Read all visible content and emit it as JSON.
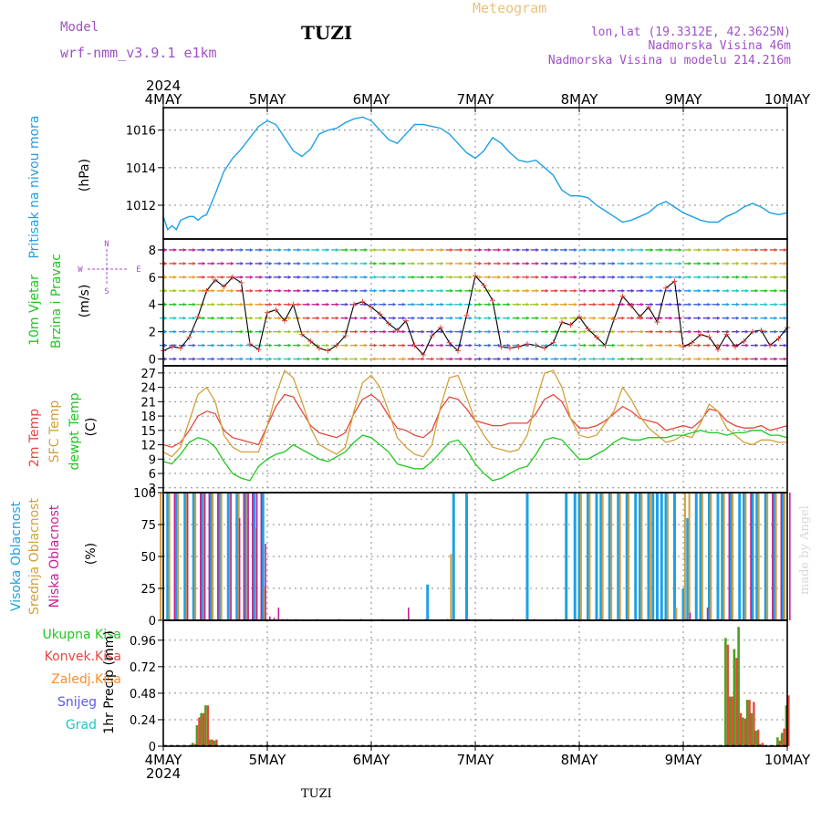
{
  "header": {
    "model_label": "Model",
    "model_name": "wrf-nmm_v3.9.1 e1km",
    "station": "TUZI",
    "meteogram": "Meteogram",
    "coords": "lon,lat (19.3312E, 42.3625N)",
    "elevation": "Nadmorska Visina 46m",
    "model_elevation": "Nadmorska Visina u modelu 214.216m",
    "credit": "made by Angel",
    "footer_station": "TUZI"
  },
  "colors": {
    "frame": "#000000",
    "grid": "#888888",
    "pressure": "#1ea0e6",
    "temp2m": "#e8463c",
    "sfc": "#d2a03c",
    "dewpt": "#1ec81e",
    "high_cloud": "#1ea0e6",
    "mid_cloud": "#d2a03c",
    "low_cloud": "#c81e96",
    "model_text": "#a050c8",
    "meteogram_text": "#e6c37d",
    "total_precip": "#4f9e1e",
    "conv_precip": "#e8463c",
    "frozen_precip": "#ff8c28",
    "snow": "#5a5ae6",
    "graupel": "#1ec8c8"
  },
  "chart_data": [
    {
      "type": "line",
      "panel": "pressure",
      "ylabel": "Pritisak na nivou mora",
      "unit": "(hPa)",
      "x_labels": [
        "4MAY",
        "5MAY",
        "6MAY",
        "7MAY",
        "8MAY",
        "9MAY",
        "10MAY"
      ],
      "year": "2024",
      "xlim": [
        0,
        144
      ],
      "ylim": [
        1010.2,
        1017.2
      ],
      "yticks": [
        "1012",
        "1014",
        "1016"
      ],
      "grid": true,
      "series": [
        {
          "color_key": "pressure",
          "x": [
            0,
            1,
            2,
            3,
            4,
            5,
            6,
            7,
            8,
            9,
            10,
            12,
            14,
            16,
            18,
            20,
            22,
            24,
            26,
            28,
            30,
            32,
            34,
            36,
            38,
            40,
            42,
            44,
            46,
            48,
            50,
            52,
            54,
            56,
            58,
            60,
            62,
            64,
            66,
            68,
            70,
            72,
            74,
            76,
            78,
            80,
            82,
            84,
            86,
            88,
            90,
            92,
            94,
            96,
            98,
            100,
            102,
            104,
            106,
            108,
            110,
            112,
            114,
            116,
            118,
            120,
            122,
            124,
            126,
            128,
            130,
            132,
            134,
            136,
            138,
            140,
            142,
            144
          ],
          "values": [
            1011.4,
            1010.7,
            1010.9,
            1010.7,
            1011.2,
            1011.3,
            1011.4,
            1011.4,
            1011.2,
            1011.4,
            1011.5,
            1012.6,
            1013.8,
            1014.5,
            1015.0,
            1015.6,
            1016.2,
            1016.5,
            1016.3,
            1015.6,
            1014.9,
            1014.6,
            1015.0,
            1015.8,
            1016.0,
            1016.1,
            1016.4,
            1016.6,
            1016.7,
            1016.5,
            1016.0,
            1015.5,
            1015.3,
            1015.8,
            1016.3,
            1016.3,
            1016.2,
            1016.1,
            1015.8,
            1015.3,
            1014.8,
            1014.5,
            1014.9,
            1015.6,
            1015.3,
            1014.8,
            1014.4,
            1014.3,
            1014.4,
            1014.0,
            1013.6,
            1012.8,
            1012.5,
            1012.5,
            1012.4,
            1012.0,
            1011.7,
            1011.4,
            1011.1,
            1011.2,
            1011.4,
            1011.6,
            1012.0,
            1012.2,
            1011.9,
            1011.6,
            1011.4,
            1011.2,
            1011.1,
            1011.1,
            1011.4,
            1011.6,
            1011.9,
            1012.1,
            1011.9,
            1011.6,
            1011.5,
            1011.6
          ]
        }
      ]
    },
    {
      "type": "line",
      "panel": "wind",
      "ylabel_top": "10m Vjetar",
      "ylabel_bottom": "Brzina i Pravac",
      "unit": "(m/s)",
      "compass": {
        "n": "N",
        "s": "S",
        "w": "W",
        "e": "E"
      },
      "ylim": [
        -0.5,
        8.8
      ],
      "yticks": [
        "0",
        "2",
        "4",
        "6",
        "8"
      ],
      "grid": true,
      "speed": {
        "x": [
          0,
          2,
          4,
          6,
          8,
          10,
          12,
          14,
          16,
          18,
          20,
          22,
          24,
          26,
          28,
          30,
          32,
          34,
          36,
          38,
          40,
          42,
          44,
          46,
          48,
          50,
          52,
          54,
          56,
          58,
          60,
          62,
          64,
          66,
          68,
          70,
          72,
          74,
          76,
          78,
          80,
          82,
          84,
          86,
          88,
          90,
          92,
          94,
          96,
          98,
          100,
          102,
          104,
          106,
          108,
          110,
          112,
          114,
          116,
          118,
          120,
          122,
          124,
          126,
          128,
          130,
          132,
          134,
          136,
          138,
          140,
          142,
          144
        ],
        "values": [
          0.6,
          0.9,
          0.8,
          1.6,
          3.1,
          5.0,
          5.8,
          5.3,
          6.0,
          5.6,
          1.1,
          0.7,
          3.4,
          3.6,
          2.8,
          4.0,
          1.8,
          1.3,
          0.8,
          0.6,
          1.0,
          1.7,
          4.0,
          4.2,
          3.8,
          3.3,
          2.6,
          2.1,
          2.8,
          1.0,
          0.3,
          1.7,
          2.3,
          1.2,
          0.6,
          3.2,
          6.1,
          5.4,
          4.3,
          0.9,
          0.8,
          0.9,
          1.1,
          1.0,
          0.8,
          1.2,
          2.7,
          2.5,
          3.1,
          2.2,
          1.6,
          1.0,
          2.9,
          4.6,
          3.9,
          3.1,
          3.8,
          2.7,
          5.2,
          5.7,
          0.9,
          1.2,
          1.8,
          1.6,
          0.7,
          1.8,
          0.9,
          1.3,
          2.0,
          2.1,
          1.0,
          1.5,
          2.3
        ]
      }
    },
    {
      "type": "line",
      "panel": "temperature",
      "labels": [
        "2m Temp",
        "SFC Temp",
        "dewpt Temp"
      ],
      "unit": "(C)",
      "ylim": [
        2.0,
        28.5
      ],
      "yticks": [
        "3",
        "6",
        "9",
        "12",
        "15",
        "18",
        "21",
        "24",
        "27"
      ],
      "grid": true,
      "x": [
        0,
        2,
        4,
        6,
        8,
        10,
        12,
        14,
        16,
        18,
        20,
        22,
        24,
        26,
        28,
        30,
        32,
        34,
        36,
        38,
        40,
        42,
        44,
        46,
        48,
        50,
        52,
        54,
        56,
        58,
        60,
        62,
        64,
        66,
        68,
        70,
        72,
        74,
        76,
        78,
        80,
        82,
        84,
        86,
        88,
        90,
        92,
        94,
        96,
        98,
        100,
        102,
        104,
        106,
        108,
        110,
        112,
        114,
        116,
        118,
        120,
        122,
        124,
        126,
        128,
        130,
        132,
        134,
        136,
        138,
        140,
        142,
        144
      ],
      "series": [
        {
          "name": "2m Temp",
          "color_key": "temp2m",
          "values": [
            12.0,
            11.5,
            12.5,
            15.0,
            18.0,
            19.0,
            18.5,
            15.0,
            13.5,
            13.0,
            12.5,
            12.0,
            16.0,
            20.0,
            22.5,
            22.0,
            19.0,
            16.0,
            14.5,
            14.0,
            13.5,
            14.5,
            18.5,
            21.5,
            22.5,
            21.0,
            18.0,
            15.5,
            15.0,
            14.0,
            13.5,
            15.0,
            19.5,
            22.0,
            21.5,
            19.5,
            17.0,
            16.5,
            16.0,
            16.0,
            16.5,
            16.5,
            16.5,
            18.5,
            21.5,
            22.5,
            21.0,
            17.5,
            15.5,
            15.5,
            16.0,
            17.0,
            18.5,
            20.0,
            19.0,
            17.5,
            17.0,
            16.5,
            15.0,
            15.5,
            16.0,
            15.5,
            17.0,
            19.5,
            19.0,
            17.0,
            16.0,
            15.5,
            15.5,
            16.0,
            15.0,
            15.5,
            16.0
          ]
        },
        {
          "name": "SFC Temp",
          "color_key": "sfc",
          "values": [
            10.5,
            9.5,
            11.5,
            17.0,
            22.5,
            24.0,
            21.0,
            14.0,
            11.5,
            10.5,
            10.5,
            10.5,
            16.0,
            22.5,
            27.5,
            26.0,
            21.0,
            15.5,
            12.0,
            11.0,
            10.0,
            11.5,
            19.0,
            25.0,
            26.5,
            24.0,
            19.0,
            13.5,
            11.5,
            10.0,
            9.5,
            12.0,
            20.0,
            26.0,
            26.5,
            22.0,
            17.0,
            14.0,
            11.5,
            11.0,
            10.5,
            11.0,
            14.0,
            21.0,
            27.0,
            27.5,
            24.0,
            17.5,
            14.0,
            13.5,
            14.0,
            16.5,
            19.0,
            24.0,
            21.5,
            18.0,
            15.5,
            14.0,
            12.5,
            13.0,
            14.0,
            13.5,
            16.5,
            20.5,
            19.0,
            15.5,
            14.0,
            12.5,
            12.0,
            13.0,
            13.0,
            12.5,
            12.5
          ]
        },
        {
          "name": "dewpt Temp",
          "color_key": "dewpt",
          "values": [
            8.5,
            8.0,
            10.0,
            12.5,
            13.5,
            13.0,
            11.5,
            8.5,
            6.0,
            5.0,
            4.5,
            7.5,
            9.0,
            10.0,
            10.5,
            12.0,
            11.0,
            10.0,
            9.0,
            8.5,
            9.5,
            10.5,
            12.5,
            14.0,
            13.5,
            12.0,
            10.5,
            8.0,
            7.5,
            7.0,
            7.0,
            8.5,
            10.5,
            12.5,
            13.0,
            11.0,
            8.0,
            6.0,
            4.5,
            5.0,
            6.0,
            7.0,
            7.5,
            10.0,
            13.0,
            13.5,
            13.0,
            11.0,
            9.0,
            9.0,
            10.0,
            11.0,
            12.5,
            13.5,
            13.0,
            13.0,
            13.5,
            13.5,
            13.5,
            14.0,
            14.0,
            14.5,
            15.0,
            14.5,
            14.5,
            14.0,
            14.5,
            14.5,
            15.0,
            15.0,
            14.0,
            14.0,
            13.5
          ]
        }
      ]
    },
    {
      "type": "bar",
      "panel": "clouds",
      "labels": [
        "Visoka Oblacnost",
        "Srednja Oblacnost",
        "Niska Oblacnost"
      ],
      "unit": "(%)",
      "ylim": [
        0,
        100
      ],
      "yticks": [
        "0",
        "25",
        "50",
        "75",
        "100"
      ],
      "grid": true,
      "series": [
        {
          "name": "Visoka Oblacnost",
          "color_key": "high_cloud",
          "x": [
            1,
            3,
            5,
            7,
            9,
            11,
            13,
            15,
            17,
            19,
            21,
            23,
            61,
            67,
            70,
            84,
            93,
            95,
            96,
            98,
            100,
            101,
            103,
            105,
            107,
            109,
            110,
            112,
            113,
            114,
            115,
            116,
            118,
            120,
            121,
            123,
            124,
            126,
            128,
            129,
            131,
            133,
            134,
            136,
            137,
            139,
            141,
            143
          ],
          "values": [
            100,
            100,
            100,
            100,
            100,
            100,
            100,
            100,
            100,
            100,
            100,
            100,
            28,
            100,
            100,
            100,
            100,
            100,
            100,
            100,
            100,
            100,
            100,
            100,
            100,
            100,
            100,
            100,
            100,
            100,
            100,
            100,
            100,
            25,
            80,
            100,
            100,
            100,
            100,
            100,
            100,
            100,
            100,
            100,
            100,
            100,
            100,
            100
          ]
        },
        {
          "name": "Srednja Oblacnost",
          "color_key": "mid_cloud",
          "x": [
            0,
            2,
            4,
            6,
            8,
            10,
            12,
            14,
            16,
            18,
            20,
            22,
            24,
            67,
            97,
            99,
            102,
            104,
            106,
            108,
            111,
            113,
            117,
            119,
            121,
            122,
            125,
            127,
            130,
            132,
            135,
            138,
            140,
            142,
            144
          ],
          "values": [
            100,
            100,
            100,
            100,
            100,
            100,
            100,
            100,
            100,
            100,
            100,
            72,
            26,
            52,
            100,
            100,
            100,
            100,
            100,
            100,
            100,
            100,
            100,
            10,
            100,
            100,
            100,
            100,
            100,
            100,
            100,
            100,
            100,
            100,
            100
          ]
        },
        {
          "name": "Niska Oblacnost",
          "color_key": "low_cloud",
          "x": [
            2,
            5,
            8,
            9,
            10,
            12,
            15,
            17,
            18,
            19,
            20,
            21,
            22,
            23,
            24,
            25,
            26,
            27,
            28,
            30,
            35,
            40,
            45,
            50,
            55,
            56,
            60,
            65,
            70,
            75,
            80,
            85,
            90,
            95,
            100,
            105,
            110,
            115,
            120,
            121,
            123,
            125,
            128,
            130,
            135,
            140,
            142,
            144
          ],
          "values": [
            100,
            100,
            100,
            100,
            100,
            100,
            100,
            80,
            100,
            100,
            100,
            100,
            100,
            60,
            3,
            2,
            10,
            1,
            1,
            1,
            1,
            1,
            1,
            1,
            1,
            10,
            1,
            1,
            1,
            1,
            1,
            1,
            1,
            1,
            1,
            1,
            1,
            1,
            1,
            6,
            1,
            10,
            1,
            100,
            100,
            100,
            100,
            100
          ]
        }
      ]
    },
    {
      "type": "bar",
      "panel": "precipitation",
      "ylabel": "1hr Precip (mm)",
      "labels": [
        "Ukupna Kisa",
        "Konvek.Kisa",
        "Zaledj.Kisa",
        "Snijeg",
        "Grad"
      ],
      "ylim": [
        0,
        1.14
      ],
      "yticks": [
        "0",
        "0.24",
        "0.48",
        "0.72",
        "0.96"
      ],
      "grid": true,
      "total": {
        "x": [
          7,
          8,
          9,
          10,
          11,
          12,
          130,
          131,
          132,
          133,
          134,
          135,
          136,
          137,
          138,
          142,
          143,
          144
        ],
        "values": [
          0.03,
          0.19,
          0.3,
          0.37,
          0.06,
          0.05,
          0.98,
          0.45,
          0.88,
          1.08,
          0.26,
          0.42,
          0.3,
          0.14,
          0.02,
          0.08,
          0.12,
          0.37
        ]
      },
      "convective": {
        "x": [
          7,
          8,
          9,
          10,
          11,
          12,
          130,
          131,
          132,
          133,
          134,
          135,
          136,
          137,
          138,
          142,
          143,
          144
        ],
        "values": [
          0.02,
          0.26,
          0.3,
          0.37,
          0.06,
          0.06,
          0.92,
          0.45,
          0.8,
          0.3,
          0.25,
          0.42,
          0.4,
          0.15,
          0.03,
          0.05,
          0.16,
          0.46
        ]
      }
    }
  ]
}
